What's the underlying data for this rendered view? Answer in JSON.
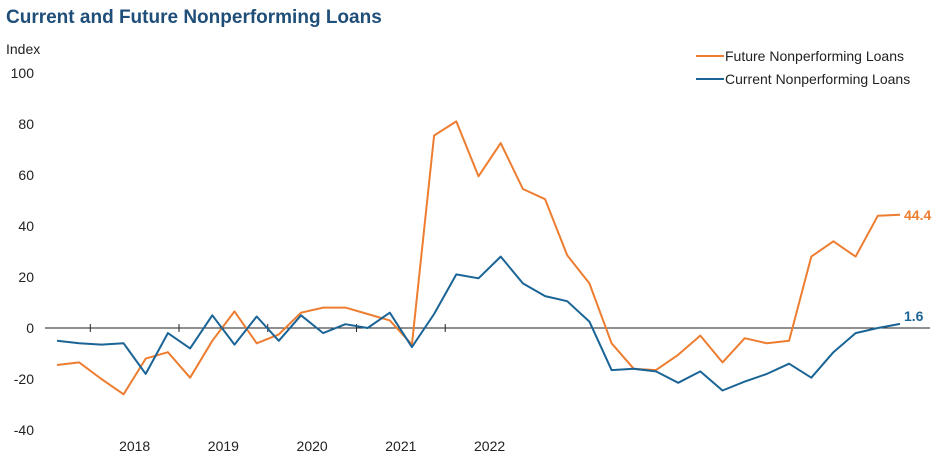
{
  "chart_data": {
    "type": "line",
    "title": "Current and Future Nonperforming Loans",
    "ylabel": "Index",
    "xlabel": "",
    "ylim": [
      -40,
      100
    ],
    "yticks": [
      100,
      80,
      60,
      40,
      20,
      0,
      -20,
      -40
    ],
    "xtick_labels": [
      "2018",
      "2019",
      "2020",
      "2021",
      "2022"
    ],
    "legend_position": "top-right",
    "grid": false,
    "series": [
      {
        "name": "Future Nonperforming Loans",
        "color": "#ed7d31",
        "end_label": "44.4",
        "values": [
          -14.5,
          -13.5,
          -20,
          -26,
          -12,
          -9.5,
          -19.5,
          -5,
          6.5,
          -6,
          -2.5,
          6,
          8,
          8,
          5.5,
          3,
          -6.5,
          75.5,
          81,
          59.5,
          72.5,
          54.5,
          50.5,
          28.5,
          17.5,
          -6,
          -16,
          -16.5,
          -10.5,
          -3,
          -13.5,
          -4,
          -6,
          -5,
          28,
          34,
          28,
          44,
          44.4
        ]
      },
      {
        "name": "Current Nonperforming Loans",
        "color": "#1a6496",
        "end_label": "1.6",
        "values": [
          -5,
          -6,
          -6.5,
          -6,
          -18,
          -2,
          -8,
          5,
          -6.5,
          4.5,
          -5,
          5,
          -2,
          1.5,
          0,
          6,
          -7.5,
          5.5,
          21,
          19.5,
          28,
          17.5,
          12.5,
          10.5,
          2.5,
          -16.5,
          -16,
          -17,
          -21.5,
          -17,
          -24.5,
          -21,
          -18,
          -14,
          -19.5,
          -9.5,
          -2,
          0,
          1.6
        ]
      }
    ]
  }
}
